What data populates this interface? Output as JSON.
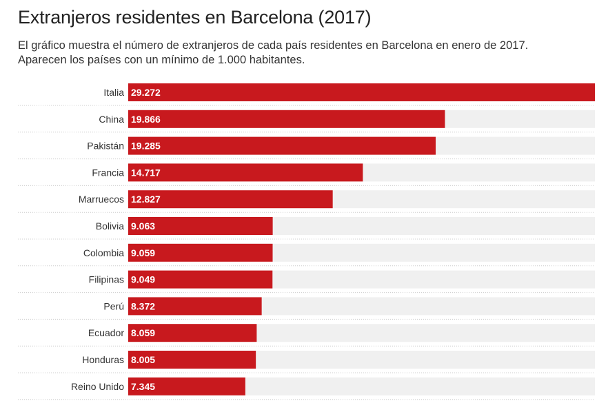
{
  "title": "Extranjeros residentes en Barcelona (2017)",
  "subtitle": [
    "El gráfico muestra el número de extranjeros de cada país residentes en Barcelona en enero de 2017.",
    "Aparecen los países con un mínimo de 1.000 habitantes."
  ],
  "colors": {
    "bar": "#c8191e",
    "track": "#f0f0f0",
    "separator": "#cccccc"
  },
  "chart_data": {
    "type": "bar",
    "orientation": "horizontal",
    "categories": [
      "Italia",
      "China",
      "Pakistán",
      "Francia",
      "Marruecos",
      "Bolivia",
      "Colombia",
      "Filipinas",
      "Perú",
      "Ecuador",
      "Honduras",
      "Reino Unido"
    ],
    "values": [
      29272,
      19866,
      19285,
      14717,
      12827,
      9063,
      9059,
      9049,
      8372,
      8059,
      8005,
      7345
    ],
    "value_labels": [
      "29.272",
      "19.866",
      "19.285",
      "14.717",
      "12.827",
      "9.063",
      "9.059",
      "9.049",
      "8.372",
      "8.059",
      "8.005",
      "7.345"
    ],
    "xlim": [
      0,
      29272
    ],
    "grid": false,
    "legend": "none"
  }
}
